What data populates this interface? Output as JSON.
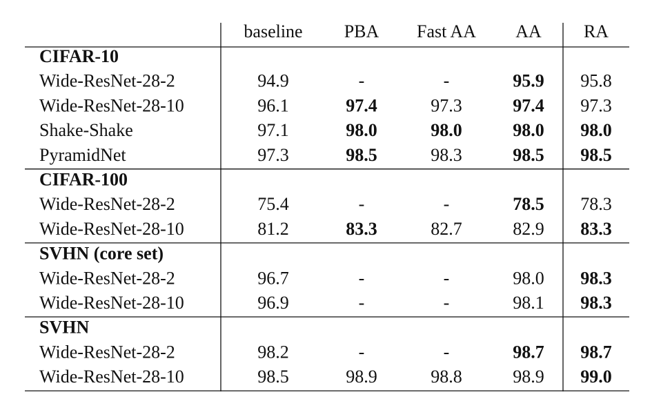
{
  "table": {
    "columns": [
      "baseline",
      "PBA",
      "Fast AA",
      "AA",
      "RA"
    ],
    "sections": [
      {
        "title": "CIFAR-10",
        "rows": [
          {
            "model": "Wide-ResNet-28-2",
            "cells": [
              "94.9",
              "-",
              "-",
              "95.9",
              "95.8"
            ],
            "bold": [
              false,
              false,
              false,
              true,
              false
            ]
          },
          {
            "model": "Wide-ResNet-28-10",
            "cells": [
              "96.1",
              "97.4",
              "97.3",
              "97.4",
              "97.3"
            ],
            "bold": [
              false,
              true,
              false,
              true,
              false
            ]
          },
          {
            "model": "Shake-Shake",
            "cells": [
              "97.1",
              "98.0",
              "98.0",
              "98.0",
              "98.0"
            ],
            "bold": [
              false,
              true,
              true,
              true,
              true
            ]
          },
          {
            "model": "PyramidNet",
            "cells": [
              "97.3",
              "98.5",
              "98.3",
              "98.5",
              "98.5"
            ],
            "bold": [
              false,
              true,
              false,
              true,
              true
            ]
          }
        ]
      },
      {
        "title": "CIFAR-100",
        "rows": [
          {
            "model": "Wide-ResNet-28-2",
            "cells": [
              "75.4",
              "-",
              "-",
              "78.5",
              "78.3"
            ],
            "bold": [
              false,
              false,
              false,
              true,
              false
            ]
          },
          {
            "model": "Wide-ResNet-28-10",
            "cells": [
              "81.2",
              "83.3",
              "82.7",
              "82.9",
              "83.3"
            ],
            "bold": [
              false,
              true,
              false,
              false,
              true
            ]
          }
        ]
      },
      {
        "title": "SVHN (core set)",
        "rows": [
          {
            "model": "Wide-ResNet-28-2",
            "cells": [
              "96.7",
              "-",
              "-",
              "98.0",
              "98.3"
            ],
            "bold": [
              false,
              false,
              false,
              false,
              true
            ]
          },
          {
            "model": "Wide-ResNet-28-10",
            "cells": [
              "96.9",
              "-",
              "-",
              "98.1",
              "98.3"
            ],
            "bold": [
              false,
              false,
              false,
              false,
              true
            ]
          }
        ]
      },
      {
        "title": "SVHN",
        "rows": [
          {
            "model": "Wide-ResNet-28-2",
            "cells": [
              "98.2",
              "-",
              "-",
              "98.7",
              "98.7"
            ],
            "bold": [
              false,
              false,
              false,
              true,
              true
            ]
          },
          {
            "model": "Wide-ResNet-28-10",
            "cells": [
              "98.5",
              "98.9",
              "98.8",
              "98.9",
              "99.0"
            ],
            "bold": [
              false,
              false,
              false,
              false,
              true
            ]
          }
        ]
      }
    ]
  }
}
